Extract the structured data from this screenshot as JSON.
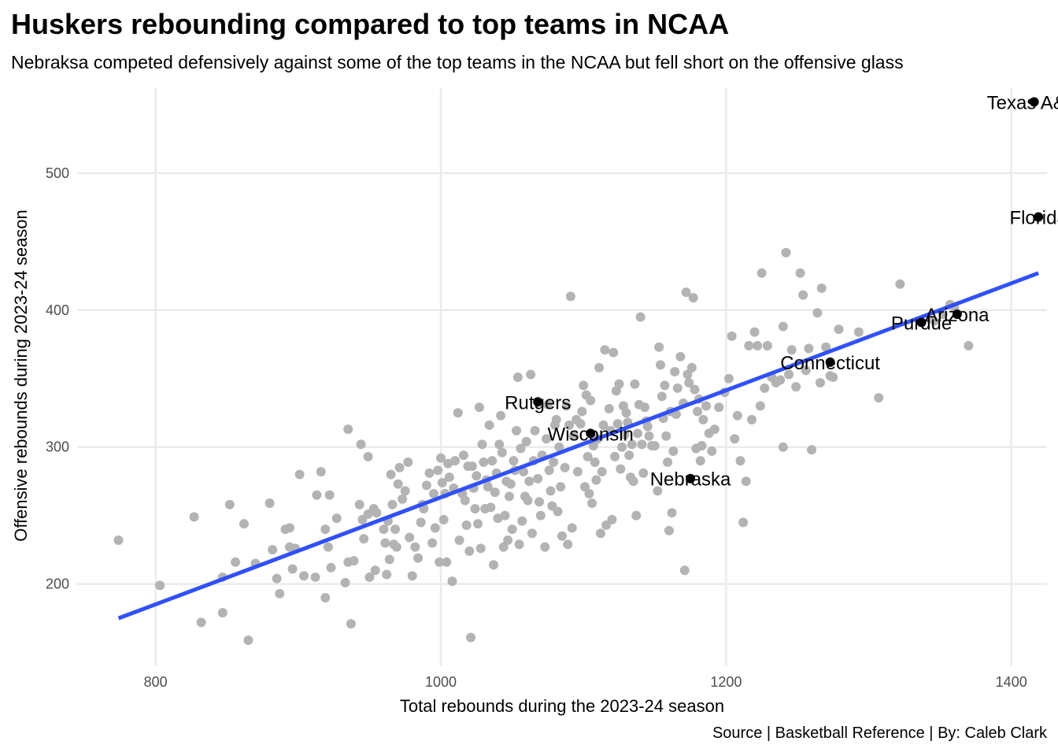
{
  "chart_data": {
    "type": "scatter",
    "title": "Huskers rebounding compared to top teams in NCAA",
    "subtitle": "Nebraksa competed defensively against some of the top teams in the NCAA but fell short on the offensive glass",
    "caption": "Source | Basketball Reference | By: Caleb Clark",
    "xlabel": "Total rebounds during the 2023-24 season",
    "ylabel": "Offensive rebounds during 2023-24 season",
    "xlim": [
      745,
      1425
    ],
    "ylim": [
      140,
      562
    ],
    "xticks": [
      800,
      1000,
      1200,
      1400
    ],
    "yticks": [
      200,
      300,
      400,
      500
    ],
    "grid": true,
    "colors": {
      "background_points": "#b3b3b3",
      "highlight_points": "#000000",
      "trend_line": "#3050f8"
    },
    "trend_line": {
      "x": [
        774,
        1419
      ],
      "y": [
        175,
        427
      ]
    },
    "highlighted": [
      {
        "team": "Texas A&M",
        "x": 1416,
        "y": 552
      },
      {
        "team": "Florida",
        "x": 1419,
        "y": 468
      },
      {
        "team": "Arizona",
        "x": 1362,
        "y": 397
      },
      {
        "team": "Purdue",
        "x": 1337,
        "y": 391
      },
      {
        "team": "Connecticut",
        "x": 1273,
        "y": 362
      },
      {
        "team": "Rutgers",
        "x": 1068,
        "y": 333
      },
      {
        "team": "Wisconsin",
        "x": 1105,
        "y": 310
      },
      {
        "team": "Nebraska",
        "x": 1175,
        "y": 277
      }
    ],
    "points": [
      [
        774,
        232
      ],
      [
        803,
        199
      ],
      [
        827,
        249
      ],
      [
        832,
        172
      ],
      [
        847,
        179
      ],
      [
        847,
        205
      ],
      [
        852,
        258
      ],
      [
        856,
        216
      ],
      [
        862,
        244
      ],
      [
        865,
        159
      ],
      [
        870,
        215
      ],
      [
        880,
        259
      ],
      [
        882,
        225
      ],
      [
        885,
        204
      ],
      [
        887,
        193
      ],
      [
        891,
        240
      ],
      [
        894,
        241
      ],
      [
        894,
        227
      ],
      [
        896,
        211
      ],
      [
        898,
        226
      ],
      [
        901,
        280
      ],
      [
        904,
        206
      ],
      [
        912,
        205
      ],
      [
        913,
        265
      ],
      [
        916,
        282
      ],
      [
        919,
        240
      ],
      [
        919,
        190
      ],
      [
        921,
        227
      ],
      [
        922,
        265
      ],
      [
        923,
        212
      ],
      [
        927,
        248
      ],
      [
        933,
        201
      ],
      [
        935,
        216
      ],
      [
        935,
        313
      ],
      [
        937,
        171
      ],
      [
        939,
        217
      ],
      [
        943,
        258
      ],
      [
        944,
        302
      ],
      [
        945,
        247
      ],
      [
        946,
        233
      ],
      [
        949,
        293
      ],
      [
        949,
        251
      ],
      [
        950,
        205
      ],
      [
        953,
        255
      ],
      [
        954,
        210
      ],
      [
        955,
        252
      ],
      [
        960,
        240
      ],
      [
        961,
        230
      ],
      [
        962,
        207
      ],
      [
        963,
        246
      ],
      [
        964,
        218
      ],
      [
        965,
        280
      ],
      [
        966,
        258
      ],
      [
        967,
        229
      ],
      [
        968,
        240
      ],
      [
        969,
        227
      ],
      [
        970,
        273
      ],
      [
        971,
        285
      ],
      [
        973,
        262
      ],
      [
        975,
        268
      ],
      [
        977,
        289
      ],
      [
        978,
        234
      ],
      [
        980,
        206
      ],
      [
        982,
        227
      ],
      [
        984,
        219
      ],
      [
        986,
        245
      ],
      [
        987,
        258
      ],
      [
        988,
        255
      ],
      [
        990,
        272
      ],
      [
        992,
        281
      ],
      [
        994,
        230
      ],
      [
        995,
        266
      ],
      [
        996,
        241
      ],
      [
        998,
        283
      ],
      [
        999,
        216
      ],
      [
        1000,
        292
      ],
      [
        1001,
        274
      ],
      [
        1002,
        247
      ],
      [
        1003,
        266
      ],
      [
        1004,
        216
      ],
      [
        1005,
        288
      ],
      [
        1006,
        278
      ],
      [
        1008,
        202
      ],
      [
        1009,
        270
      ],
      [
        1010,
        290
      ],
      [
        1012,
        325
      ],
      [
        1013,
        232
      ],
      [
        1015,
        266
      ],
      [
        1016,
        294
      ],
      [
        1017,
        261
      ],
      [
        1018,
        243
      ],
      [
        1019,
        286
      ],
      [
        1020,
        224
      ],
      [
        1021,
        161
      ],
      [
        1022,
        286
      ],
      [
        1023,
        270
      ],
      [
        1024,
        255
      ],
      [
        1025,
        279
      ],
      [
        1026,
        244
      ],
      [
        1027,
        329
      ],
      [
        1028,
        226
      ],
      [
        1029,
        302
      ],
      [
        1030,
        289
      ],
      [
        1031,
        255
      ],
      [
        1032,
        276
      ],
      [
        1033,
        271
      ],
      [
        1034,
        316
      ],
      [
        1035,
        256
      ],
      [
        1036,
        290
      ],
      [
        1037,
        214
      ],
      [
        1038,
        267
      ],
      [
        1039,
        281
      ],
      [
        1040,
        248
      ],
      [
        1041,
        302
      ],
      [
        1042,
        323
      ],
      [
        1043,
        296
      ],
      [
        1044,
        227
      ],
      [
        1045,
        250
      ],
      [
        1046,
        275
      ],
      [
        1047,
        232
      ],
      [
        1048,
        264
      ],
      [
        1049,
        273
      ],
      [
        1050,
        240
      ],
      [
        1051,
        290
      ],
      [
        1052,
        283
      ],
      [
        1053,
        312
      ],
      [
        1054,
        351
      ],
      [
        1055,
        229
      ],
      [
        1056,
        299
      ],
      [
        1057,
        246
      ],
      [
        1058,
        282
      ],
      [
        1059,
        264
      ],
      [
        1060,
        304
      ],
      [
        1061,
        261
      ],
      [
        1062,
        275
      ],
      [
        1063,
        353
      ],
      [
        1064,
        237
      ],
      [
        1065,
        290
      ],
      [
        1066,
        312
      ],
      [
        1068,
        277
      ],
      [
        1069,
        260
      ],
      [
        1070,
        250
      ],
      [
        1071,
        294
      ],
      [
        1073,
        227
      ],
      [
        1074,
        306
      ],
      [
        1075,
        331
      ],
      [
        1076,
        283
      ],
      [
        1077,
        268
      ],
      [
        1078,
        257
      ],
      [
        1079,
        289
      ],
      [
        1080,
        316
      ],
      [
        1081,
        320
      ],
      [
        1082,
        253
      ],
      [
        1083,
        300
      ],
      [
        1084,
        271
      ],
      [
        1085,
        235
      ],
      [
        1087,
        285
      ],
      [
        1088,
        330
      ],
      [
        1089,
        229
      ],
      [
        1090,
        316
      ],
      [
        1091,
        410
      ],
      [
        1092,
        241
      ],
      [
        1093,
        308
      ],
      [
        1095,
        320
      ],
      [
        1096,
        282
      ],
      [
        1098,
        317
      ],
      [
        1099,
        326
      ],
      [
        1100,
        345
      ],
      [
        1101,
        271
      ],
      [
        1102,
        338
      ],
      [
        1103,
        293
      ],
      [
        1104,
        266
      ],
      [
        1105,
        334
      ],
      [
        1106,
        259
      ],
      [
        1107,
        301
      ],
      [
        1108,
        289
      ],
      [
        1109,
        276
      ],
      [
        1110,
        306
      ],
      [
        1111,
        358
      ],
      [
        1112,
        237
      ],
      [
        1113,
        282
      ],
      [
        1114,
        316
      ],
      [
        1115,
        371
      ],
      [
        1116,
        243
      ],
      [
        1118,
        328
      ],
      [
        1119,
        312
      ],
      [
        1120,
        247
      ],
      [
        1121,
        369
      ],
      [
        1122,
        293
      ],
      [
        1123,
        341
      ],
      [
        1124,
        317
      ],
      [
        1125,
        346
      ],
      [
        1126,
        284
      ],
      [
        1127,
        300
      ],
      [
        1128,
        330
      ],
      [
        1129,
        309
      ],
      [
        1130,
        325
      ],
      [
        1131,
        318
      ],
      [
        1132,
        294
      ],
      [
        1133,
        278
      ],
      [
        1134,
        302
      ],
      [
        1135,
        275
      ],
      [
        1136,
        346
      ],
      [
        1137,
        250
      ],
      [
        1138,
        310
      ],
      [
        1139,
        331
      ],
      [
        1140,
        395
      ],
      [
        1141,
        302
      ],
      [
        1142,
        281
      ],
      [
        1143,
        329
      ],
      [
        1144,
        319
      ],
      [
        1145,
        315
      ],
      [
        1146,
        308
      ],
      [
        1148,
        301
      ],
      [
        1150,
        301
      ],
      [
        1152,
        268
      ],
      [
        1153,
        373
      ],
      [
        1154,
        360
      ],
      [
        1155,
        337
      ],
      [
        1156,
        321
      ],
      [
        1157,
        345
      ],
      [
        1158,
        308
      ],
      [
        1159,
        289
      ],
      [
        1160,
        239
      ],
      [
        1161,
        326
      ],
      [
        1162,
        252
      ],
      [
        1163,
        297
      ],
      [
        1164,
        355
      ],
      [
        1165,
        324
      ],
      [
        1166,
        343
      ],
      [
        1168,
        366
      ],
      [
        1170,
        332
      ],
      [
        1171,
        210
      ],
      [
        1172,
        413
      ],
      [
        1173,
        353
      ],
      [
        1174,
        347
      ],
      [
        1176,
        358
      ],
      [
        1177,
        409
      ],
      [
        1178,
        342
      ],
      [
        1179,
        299
      ],
      [
        1180,
        326
      ],
      [
        1181,
        335
      ],
      [
        1182,
        290
      ],
      [
        1183,
        301
      ],
      [
        1184,
        320
      ],
      [
        1186,
        330
      ],
      [
        1188,
        310
      ],
      [
        1190,
        297
      ],
      [
        1192,
        313
      ],
      [
        1195,
        329
      ],
      [
        1199,
        340
      ],
      [
        1202,
        350
      ],
      [
        1204,
        381
      ],
      [
        1206,
        306
      ],
      [
        1208,
        323
      ],
      [
        1210,
        290
      ],
      [
        1212,
        245
      ],
      [
        1214,
        275
      ],
      [
        1216,
        374
      ],
      [
        1218,
        320
      ],
      [
        1220,
        384
      ],
      [
        1222,
        374
      ],
      [
        1224,
        330
      ],
      [
        1225,
        427
      ],
      [
        1227,
        343
      ],
      [
        1229,
        374
      ],
      [
        1232,
        351
      ],
      [
        1235,
        347
      ],
      [
        1238,
        349
      ],
      [
        1240,
        300
      ],
      [
        1240,
        388
      ],
      [
        1242,
        442
      ],
      [
        1244,
        353
      ],
      [
        1246,
        371
      ],
      [
        1249,
        344
      ],
      [
        1252,
        427
      ],
      [
        1254,
        411
      ],
      [
        1256,
        356
      ],
      [
        1258,
        372
      ],
      [
        1260,
        298
      ],
      [
        1264,
        398
      ],
      [
        1266,
        347
      ],
      [
        1267,
        416
      ],
      [
        1270,
        373
      ],
      [
        1273,
        352
      ],
      [
        1275,
        351
      ],
      [
        1279,
        386
      ],
      [
        1293,
        384
      ],
      [
        1307,
        336
      ],
      [
        1322,
        419
      ],
      [
        1346,
        392
      ],
      [
        1352,
        397
      ],
      [
        1357,
        404
      ],
      [
        1360,
        402
      ],
      [
        1370,
        374
      ]
    ]
  }
}
